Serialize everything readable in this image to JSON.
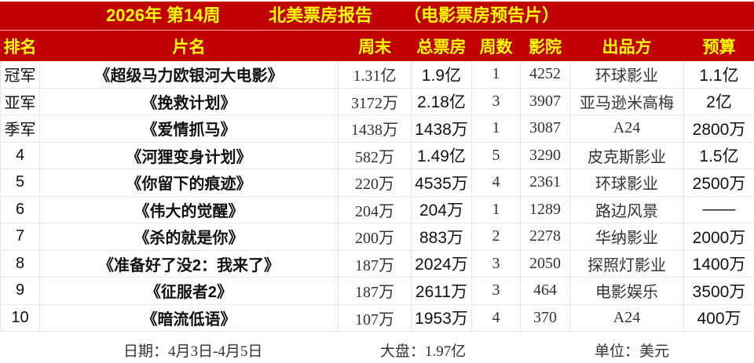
{
  "title": {
    "week": "2026年 第14周",
    "report": "北美票房报告",
    "subtitle": "（电影票房预告片）"
  },
  "colors": {
    "header_bg": "#c00000",
    "header_text": "#ffff00"
  },
  "columns": [
    "排名",
    "片名",
    "周末",
    "总票房",
    "周数",
    "影院",
    "出品方",
    "预算"
  ],
  "rows": [
    {
      "rank": "冠军",
      "film": "《超级马力欧银河大电影》",
      "weekend": "1.31亿",
      "total": "1.9亿",
      "weeks": "1",
      "theaters": "4252",
      "studio": "环球影业",
      "budget": "1.1亿"
    },
    {
      "rank": "亚军",
      "film": "《挽救计划》",
      "weekend": "3172万",
      "total": "2.18亿",
      "weeks": "3",
      "theaters": "3907",
      "studio": "亚马逊米高梅",
      "budget": "2亿"
    },
    {
      "rank": "季军",
      "film": "《爱情抓马》",
      "weekend": "1438万",
      "total": "1438万",
      "weeks": "1",
      "theaters": "3087",
      "studio": "A24",
      "budget": "2800万"
    },
    {
      "rank": "4",
      "film": "《河狸变身计划》",
      "weekend": "582万",
      "total": "1.49亿",
      "weeks": "5",
      "theaters": "3290",
      "studio": "皮克斯影业",
      "budget": "1.5亿"
    },
    {
      "rank": "5",
      "film": "《你留下的痕迹》",
      "weekend": "220万",
      "total": "4535万",
      "weeks": "4",
      "theaters": "2361",
      "studio": "环球影业",
      "budget": "2500万"
    },
    {
      "rank": "6",
      "film": "《伟大的觉醒》",
      "weekend": "204万",
      "total": "204万",
      "weeks": "1",
      "theaters": "1289",
      "studio": "路边风景",
      "budget": "——"
    },
    {
      "rank": "7",
      "film": "《杀的就是你》",
      "weekend": "200万",
      "total": "883万",
      "weeks": "2",
      "theaters": "2278",
      "studio": "华纳影业",
      "budget": "2000万"
    },
    {
      "rank": "8",
      "film": "《准备好了没2：我来了》",
      "weekend": "187万",
      "total": "2024万",
      "weeks": "3",
      "theaters": "2050",
      "studio": "探照灯影业",
      "budget": "1400万"
    },
    {
      "rank": "9",
      "film": "《征服者2》",
      "weekend": "187万",
      "total": "2611万",
      "weeks": "3",
      "theaters": "464",
      "studio": "电影娱乐",
      "budget": "3500万"
    },
    {
      "rank": "10",
      "film": "《暗流低语》",
      "weekend": "107万",
      "total": "1953万",
      "weeks": "4",
      "theaters": "370",
      "studio": "A24",
      "budget": "400万"
    }
  ],
  "footer": {
    "date": "日期：4月3日-4月5日",
    "market": "大盘：1.97亿",
    "unit": "单位：美元"
  }
}
